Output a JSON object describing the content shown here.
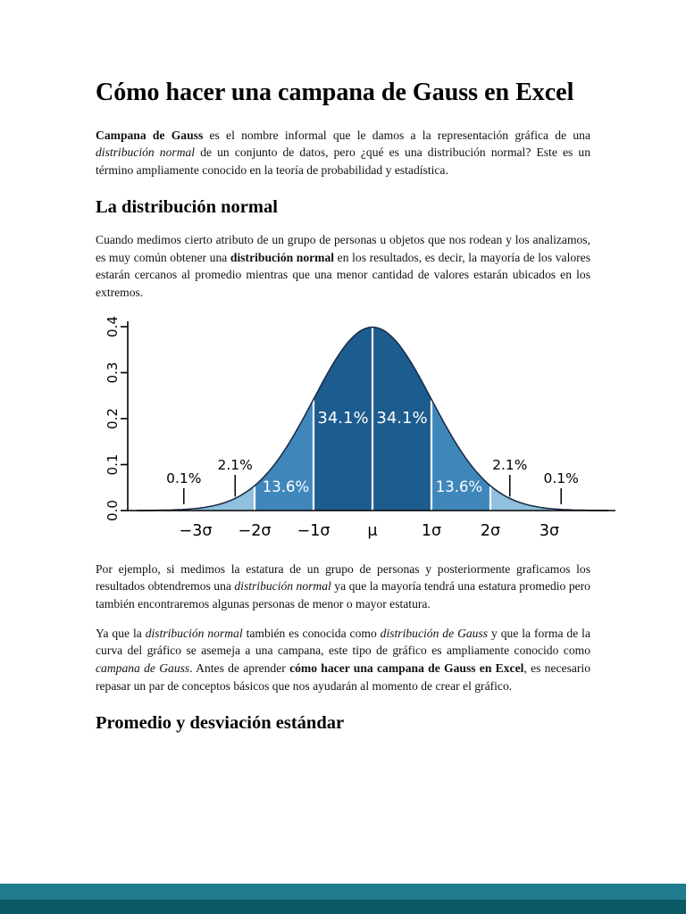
{
  "document": {
    "title": "Cómo hacer una campana de Gauss en Excel",
    "paragraph1": [
      {
        "t": "Campana de Gauss",
        "b": true
      },
      {
        "t": " es el nombre informal que le damos a la representación gráfica de una "
      },
      {
        "t": "distribución normal",
        "i": true
      },
      {
        "t": " de un conjunto de datos, pero ¿qué es una distribución normal? Este es un término ampliamente conocido en la teoría de probabilidad y estadística."
      }
    ],
    "heading_normal": "La distribución normal",
    "paragraph2": [
      {
        "t": "Cuando medimos cierto atributo de un grupo de personas u objetos que nos rodean y los analizamos, es muy común obtener una "
      },
      {
        "t": "distribución normal",
        "b": true
      },
      {
        "t": " en los resultados, es decir, la mayoría de los valores estarán cercanos al promedio mientras que una menor cantidad de valores estarán ubicados en los extremos."
      }
    ],
    "paragraph3": [
      {
        "t": "Por ejemplo, si medimos la estatura de un grupo de personas y posteriormente graficamos los resultados obtendremos una "
      },
      {
        "t": "distribución normal",
        "i": true
      },
      {
        "t": " ya que la mayoría tendrá una estatura promedio pero también encontraremos algunas personas de menor o mayor estatura."
      }
    ],
    "paragraph4": [
      {
        "t": "Ya que la "
      },
      {
        "t": "distribución normal",
        "i": true
      },
      {
        "t": " también es conocida como "
      },
      {
        "t": "distribución de Gauss",
        "i": true
      },
      {
        "t": " y que la forma de la curva del gráfico se asemeja a una campana, este tipo de gráfico es ampliamente conocido como "
      },
      {
        "t": "campana de Gauss",
        "i": true
      },
      {
        "t": ". Antes de aprender "
      },
      {
        "t": "cómo hacer una campana de Gauss en Excel",
        "b": true
      },
      {
        "t": ", es necesario repasar un par de conceptos básicos que nos ayudarán al momento de crear el gráfico."
      }
    ],
    "heading_promedio": "Promedio y desviación estándar"
  },
  "chart_data": {
    "type": "area",
    "description": "Standard normal distribution (campana de Gauss) with empirical-rule band percentages",
    "x_tick_labels": [
      "−3σ",
      "−2σ",
      "−1σ",
      "μ",
      "1σ",
      "2σ",
      "3σ"
    ],
    "y_tick_labels": [
      "0.0",
      "0.1",
      "0.2",
      "0.3",
      "0.4"
    ],
    "xlim_sigma": [
      -4,
      4
    ],
    "ylim": [
      0,
      0.4
    ],
    "bands": [
      {
        "from_sigma": -4,
        "to_sigma": -3,
        "percent": 0.1,
        "color": "#cfe2f0"
      },
      {
        "from_sigma": -3,
        "to_sigma": -2,
        "percent": 2.1,
        "color": "#8fc0dd"
      },
      {
        "from_sigma": -2,
        "to_sigma": -1,
        "percent": 13.6,
        "color": "#3f87ba"
      },
      {
        "from_sigma": -1,
        "to_sigma": 0,
        "percent": 34.1,
        "color": "#1d5c8f"
      },
      {
        "from_sigma": 0,
        "to_sigma": 1,
        "percent": 34.1,
        "color": "#1d5c8f"
      },
      {
        "from_sigma": 1,
        "to_sigma": 2,
        "percent": 13.6,
        "color": "#3f87ba"
      },
      {
        "from_sigma": 2,
        "to_sigma": 3,
        "percent": 2.1,
        "color": "#8fc0dd"
      },
      {
        "from_sigma": 3,
        "to_sigma": 4,
        "percent": 0.1,
        "color": "#cfe2f0"
      }
    ],
    "separators_sigma": [
      -2,
      -1,
      0,
      1,
      2
    ],
    "labels": [
      {
        "text": "34.1%",
        "sigma": -0.5,
        "kind": "center"
      },
      {
        "text": "34.1%",
        "sigma": 0.5,
        "kind": "center"
      },
      {
        "text": "13.6%",
        "sigma": -1.47,
        "kind": "lower"
      },
      {
        "text": "13.6%",
        "sigma": 1.47,
        "kind": "lower"
      },
      {
        "text": "2.1%",
        "sigma": -2.33,
        "kind": "above"
      },
      {
        "text": "2.1%",
        "sigma": 2.33,
        "kind": "above"
      },
      {
        "text": "0.1%",
        "sigma": -3.2,
        "kind": "tail"
      },
      {
        "text": "0.1%",
        "sigma": 3.2,
        "kind": "tail"
      }
    ]
  },
  "footer": {
    "band_top_color": "#1f7d8e",
    "band_bottom_color": "#0b5866"
  }
}
